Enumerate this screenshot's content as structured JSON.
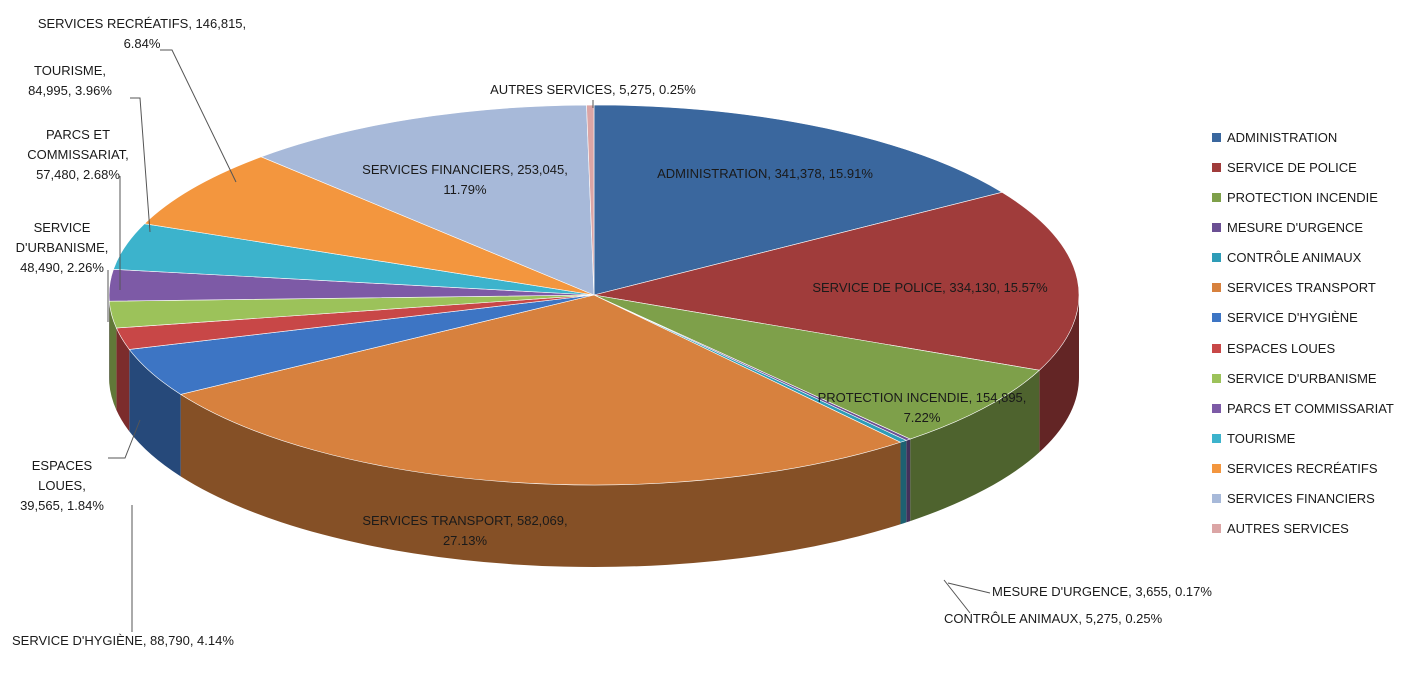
{
  "chart_data": {
    "type": "pie",
    "title": "",
    "legend_position": "right",
    "slices": [
      {
        "name": "ADMINISTRATION",
        "value": 341378,
        "value_label": "341,378",
        "percent_label": "15.91%",
        "color": "#3a679e"
      },
      {
        "name": "SERVICE DE POLICE",
        "value": 334130,
        "value_label": "334,130",
        "percent_label": "15.57%",
        "color": "#a03c3b"
      },
      {
        "name": "PROTECTION INCENDIE",
        "value": 154895,
        "value_label": "154,895",
        "percent_label": "7.22%",
        "color": "#7ea04a"
      },
      {
        "name": "MESURE D'URGENCE",
        "value": 3655,
        "value_label": "3,655",
        "percent_label": "0.17%",
        "color": "#6b4f93"
      },
      {
        "name": "CONTRÔLE ANIMAUX",
        "value": 5275,
        "value_label": "5,275",
        "percent_label": "0.25%",
        "color": "#2e9cb7"
      },
      {
        "name": "SERVICES TRANSPORT",
        "value": 582069,
        "value_label": "582,069",
        "percent_label": "27.13%",
        "color": "#d7813e"
      },
      {
        "name": "SERVICE D'HYGIÈNE",
        "value": 88790,
        "value_label": "88,790",
        "percent_label": "4.14%",
        "color": "#3d75c4"
      },
      {
        "name": "ESPACES LOUES",
        "value": 39565,
        "value_label": "39,565",
        "percent_label": "1.84%",
        "color": "#c84747"
      },
      {
        "name": "SERVICE D'URBANISME",
        "value": 48490,
        "value_label": "48,490",
        "percent_label": "2.26%",
        "color": "#9cc25a"
      },
      {
        "name": "PARCS ET COMMISSARIAT",
        "value": 57480,
        "value_label": "57,480",
        "percent_label": "2.68%",
        "color": "#7d5aa6"
      },
      {
        "name": "TOURISME",
        "value": 84995,
        "value_label": "84,995",
        "percent_label": "3.96%",
        "color": "#3cb3cc"
      },
      {
        "name": "SERVICES RECRÉATIFS",
        "value": 146815,
        "value_label": "146,815",
        "percent_label": "6.84%",
        "color": "#f3963e"
      },
      {
        "name": "SERVICES FINANCIERS",
        "value": 253045,
        "value_label": "253,045",
        "percent_label": "11.79%",
        "color": "#a7b9d9"
      },
      {
        "name": "AUTRES SERVICES",
        "value": 5275,
        "value_label": "5,275",
        "percent_label": "0.25%",
        "color": "#dba5a5"
      }
    ]
  }
}
